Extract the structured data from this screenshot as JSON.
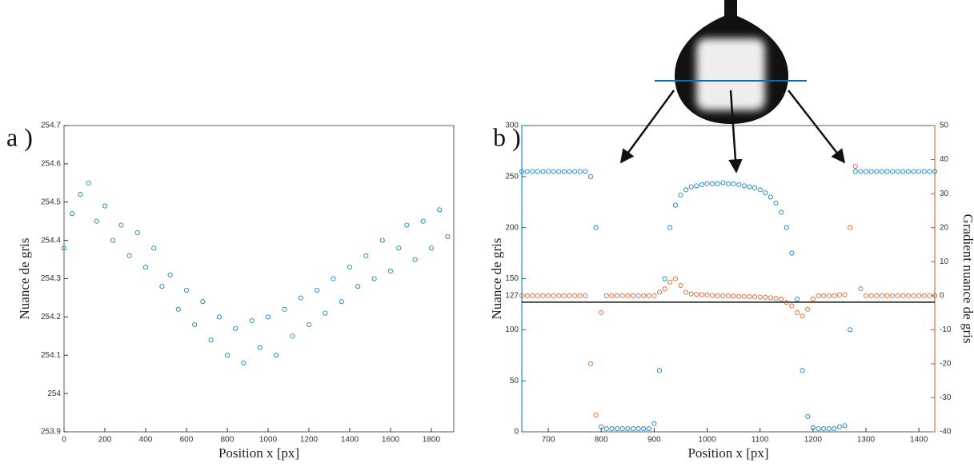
{
  "chart_data": [
    {
      "type": "scatter",
      "annotation": "a )",
      "xlabel": "Position x [px]",
      "ylabel": "Nuance de gris",
      "xlim": [
        0,
        1910
      ],
      "xticks": [
        0,
        200,
        400,
        600,
        800,
        1000,
        1200,
        1400,
        1600,
        1800
      ],
      "ylim": [
        253.9,
        254.7
      ],
      "yticks": [
        253.9,
        254,
        254.1,
        254.2,
        254.3,
        254.4,
        254.5,
        254.6,
        254.7
      ],
      "series": [
        {
          "color": "#0072bd",
          "x": [
            0,
            40,
            80,
            120,
            160,
            200,
            240,
            280,
            320,
            360,
            400,
            440,
            480,
            520,
            560,
            600,
            640,
            680,
            720,
            760,
            800,
            840,
            880,
            920,
            960,
            1000,
            1040,
            1080,
            1120,
            1160,
            1200,
            1240,
            1280,
            1320,
            1360,
            1400,
            1440,
            1480,
            1520,
            1560,
            1600,
            1640,
            1680,
            1720,
            1760,
            1800,
            1840,
            1880
          ],
          "values": [
            254.38,
            254.47,
            254.52,
            254.55,
            254.45,
            254.49,
            254.4,
            254.44,
            254.36,
            254.42,
            254.33,
            254.38,
            254.28,
            254.31,
            254.22,
            254.27,
            254.18,
            254.24,
            254.14,
            254.2,
            254.1,
            254.17,
            254.08,
            254.19,
            254.12,
            254.2,
            254.1,
            254.22,
            254.15,
            254.25,
            254.18,
            254.27,
            254.21,
            254.3,
            254.24,
            254.33,
            254.28,
            254.36,
            254.3,
            254.4,
            254.32,
            254.38,
            254.44,
            254.35,
            254.45,
            254.38,
            254.48,
            254.41
          ]
        }
      ]
    },
    {
      "type": "scatter",
      "annotation": "b )",
      "xlabel": "Position x [px]",
      "ylabel": "Nuance de gris",
      "y2label": "Gradient nuance de gris",
      "reference_line": 127,
      "xlim": [
        650,
        1430
      ],
      "xticks": [
        700,
        800,
        900,
        1000,
        1100,
        1200,
        1300,
        1400
      ],
      "ylim": [
        0,
        300
      ],
      "yticks": [
        0,
        50,
        100,
        150,
        200,
        250,
        300
      ],
      "y2lim": [
        -40,
        50
      ],
      "y2ticks": [
        -40,
        -30,
        -20,
        -10,
        0,
        10,
        20,
        30,
        40,
        50
      ],
      "series": [
        {
          "color": "#0072bd",
          "x": [
            650,
            660,
            670,
            680,
            690,
            700,
            710,
            720,
            730,
            740,
            750,
            760,
            770,
            780,
            790,
            800,
            810,
            820,
            830,
            840,
            850,
            860,
            870,
            880,
            890,
            900,
            910,
            920,
            930,
            940,
            950,
            960,
            970,
            980,
            990,
            1000,
            1010,
            1020,
            1030,
            1040,
            1050,
            1060,
            1070,
            1080,
            1090,
            1100,
            1110,
            1120,
            1130,
            1140,
            1150,
            1160,
            1170,
            1180,
            1190,
            1200,
            1210,
            1220,
            1230,
            1240,
            1250,
            1260,
            1270,
            1280,
            1290,
            1300,
            1310,
            1320,
            1330,
            1340,
            1350,
            1360,
            1370,
            1380,
            1390,
            1400,
            1410,
            1420,
            1430
          ],
          "values": [
            255,
            255,
            255,
            255,
            255,
            255,
            255,
            255,
            255,
            255,
            255,
            255,
            255,
            250,
            200,
            5,
            3,
            3,
            3,
            3,
            3,
            3,
            3,
            3,
            3,
            8,
            60,
            150,
            200,
            222,
            232,
            237,
            240,
            241,
            242,
            243,
            243,
            243,
            244,
            243,
            243,
            242,
            241,
            240,
            239,
            237,
            234,
            230,
            224,
            215,
            200,
            175,
            130,
            60,
            15,
            4,
            3,
            3,
            3,
            3,
            5,
            6,
            100,
            255,
            255,
            255,
            255,
            255,
            255,
            255,
            255,
            255,
            255,
            255,
            255,
            255,
            255,
            255,
            255
          ]
        },
        {
          "color": "#d95319",
          "axis": "y2",
          "x": [
            650,
            660,
            670,
            680,
            690,
            700,
            710,
            720,
            730,
            740,
            750,
            760,
            770,
            780,
            790,
            800,
            810,
            820,
            830,
            840,
            850,
            860,
            870,
            880,
            890,
            900,
            910,
            920,
            930,
            940,
            950,
            960,
            970,
            980,
            990,
            1000,
            1010,
            1020,
            1030,
            1040,
            1050,
            1060,
            1070,
            1080,
            1090,
            1100,
            1110,
            1120,
            1130,
            1140,
            1150,
            1160,
            1170,
            1180,
            1190,
            1200,
            1210,
            1220,
            1230,
            1240,
            1250,
            1260,
            1270,
            1280,
            1290,
            1300,
            1310,
            1320,
            1330,
            1340,
            1350,
            1360,
            1370,
            1380,
            1390,
            1400,
            1410,
            1420,
            1430
          ],
          "values": [
            0,
            0,
            0,
            0,
            0,
            0,
            0,
            0,
            0,
            0,
            0,
            0,
            0,
            -20,
            -35,
            -5,
            0,
            0,
            0,
            0,
            0,
            0,
            0,
            0,
            0,
            0,
            1,
            2,
            4,
            5,
            3,
            1,
            0.5,
            0.4,
            0.3,
            0.2,
            0.1,
            0,
            0,
            0,
            -0.1,
            -0.2,
            -0.2,
            -0.3,
            -0.3,
            -0.4,
            -0.5,
            -0.6,
            -0.8,
            -1,
            -2,
            -3,
            -5,
            -6,
            -4,
            -1,
            0,
            0,
            0,
            0,
            0.2,
            0.3,
            20,
            38,
            2,
            0,
            0,
            0,
            0,
            0,
            0,
            0,
            0,
            0,
            0,
            0,
            0,
            0,
            0
          ]
        }
      ]
    }
  ]
}
